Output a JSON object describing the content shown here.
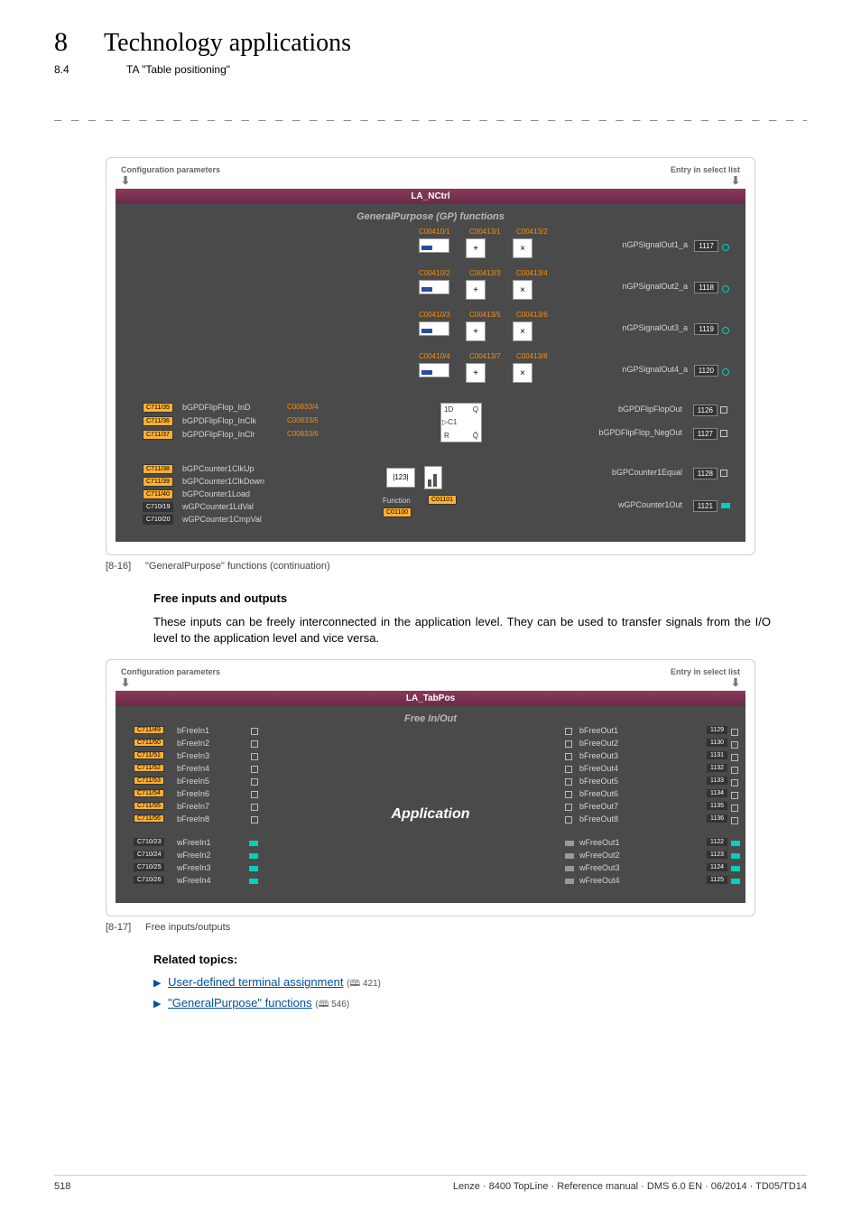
{
  "header": {
    "chapter_num": "8",
    "chapter_title": "Technology applications",
    "section_num": "8.4",
    "section_title": "TA \"Table positioning\""
  },
  "dash_line": "_ _ _ _ _ _ _ _ _ _ _ _ _ _ _ _ _ _ _ _ _ _ _ _ _ _ _ _ _ _ _ _ _ _ _ _ _ _ _ _ _ _ _ _ _ _ _ _ _ _ _ _ _ _ _ _ _ _ _ _ _ _ _ _",
  "diagram1": {
    "top_left": "Configuration parameters",
    "top_right": "Entry in select list",
    "block_title": "LA_NCtrl",
    "subtitle": "GeneralPurpose (GP) functions",
    "gp_rows": [
      {
        "c1": "C00410/1",
        "c2": "C00413/1",
        "c3": "C00413/2",
        "out": "nGPSignalOut1_a",
        "port": "1117"
      },
      {
        "c1": "C00410/2",
        "c2": "C00413/3",
        "c3": "C00413/4",
        "out": "nGPSignalOut2_a",
        "port": "1118"
      },
      {
        "c1": "C00410/3",
        "c2": "C00413/5",
        "c3": "C00413/6",
        "out": "nGPSignalOut3_a",
        "port": "1119"
      },
      {
        "c1": "C00410/4",
        "c2": "C00413/7",
        "c3": "C00413/8",
        "out": "nGPSignalOut4_a",
        "port": "1120"
      }
    ],
    "ff": {
      "ins": [
        {
          "port": "C711/35",
          "label": "bGPDFlipFlop_InD",
          "code": "C00833/4"
        },
        {
          "port": "C711/36",
          "label": "bGPDFlipFlop_InClk",
          "code": "C00833/5"
        },
        {
          "port": "C711/37",
          "label": "bGPDFlipFlop_InClr",
          "code": "C00833/6"
        }
      ],
      "box": {
        "tl": "1D",
        "tr": "Q",
        "ml": "C1",
        "bl": "R",
        "br": "Q̄"
      },
      "outs": [
        {
          "label": "bGPDFlipFlopOut",
          "port": "1126"
        },
        {
          "label": "bGPDFlipFlop_NegOut",
          "port": "1127"
        }
      ]
    },
    "counter": {
      "ins": [
        {
          "port": "C711/38",
          "label": "bGPCounter1ClkUp"
        },
        {
          "port": "C711/39",
          "label": "bGPCounter1ClkDown"
        },
        {
          "port": "C711/40",
          "label": "bGPCounter1Load"
        },
        {
          "port": "C710/19",
          "label": "wGPCounter1LdVal"
        },
        {
          "port": "C710/20",
          "label": "wGPCounter1CmpVal"
        }
      ],
      "func_label": "Function",
      "func_code1": "C01100",
      "func_code2": "C01101",
      "disp": "123",
      "outs": [
        {
          "label": "bGPCounter1Equal",
          "port": "1128",
          "square": true
        },
        {
          "label": "wGPCounter1Out",
          "port": "1121",
          "square": false
        }
      ]
    }
  },
  "fig1": {
    "num": "[8-16]",
    "caption": "\"GeneralPurpose\" functions (continuation)"
  },
  "bodytext": {
    "h1": "Free inputs and outputs",
    "p1": "These inputs can be freely interconnected in the application level. They can be used to transfer signals from the I/O level to the application level and vice versa."
  },
  "diagram2": {
    "top_left": "Configuration parameters",
    "top_right": "Entry in select list",
    "block_title": "LA_TabPos",
    "subtitle": "Free In/Out",
    "app_label": "Application",
    "b_in": [
      {
        "port": "C711/49",
        "label": "bFreeIn1"
      },
      {
        "port": "C711/50",
        "label": "bFreeIn2"
      },
      {
        "port": "C711/51",
        "label": "bFreeIn3"
      },
      {
        "port": "C711/52",
        "label": "bFreeIn4"
      },
      {
        "port": "C711/53",
        "label": "bFreeIn5"
      },
      {
        "port": "C711/54",
        "label": "bFreeIn6"
      },
      {
        "port": "C711/55",
        "label": "bFreeIn7"
      },
      {
        "port": "C711/56",
        "label": "bFreeIn8"
      }
    ],
    "w_in": [
      {
        "port": "C710/23",
        "label": "wFreeIn1"
      },
      {
        "port": "C710/24",
        "label": "wFreeIn2"
      },
      {
        "port": "C710/25",
        "label": "wFreeIn3"
      },
      {
        "port": "C710/26",
        "label": "wFreeIn4"
      }
    ],
    "b_out": [
      {
        "label": "bFreeOut1",
        "port": "1129"
      },
      {
        "label": "bFreeOut2",
        "port": "1130"
      },
      {
        "label": "bFreeOut3",
        "port": "1131"
      },
      {
        "label": "bFreeOut4",
        "port": "1132"
      },
      {
        "label": "bFreeOut5",
        "port": "1133"
      },
      {
        "label": "bFreeOut6",
        "port": "1134"
      },
      {
        "label": "bFreeOut7",
        "port": "1135"
      },
      {
        "label": "bFreeOut8",
        "port": "1136"
      }
    ],
    "w_out": [
      {
        "label": "wFreeOut1",
        "port": "1122"
      },
      {
        "label": "wFreeOut2",
        "port": "1123"
      },
      {
        "label": "wFreeOut3",
        "port": "1124"
      },
      {
        "label": "wFreeOut4",
        "port": "1125"
      }
    ]
  },
  "fig2": {
    "num": "[8-17]",
    "caption": "Free inputs/outputs"
  },
  "related": {
    "heading": "Related topics:",
    "items": [
      {
        "text": "User-defined terminal assignment",
        "page": "421"
      },
      {
        "text": "\"GeneralPurpose\" functions",
        "page": "546"
      }
    ]
  },
  "footer": {
    "page": "518",
    "right": "Lenze · 8400 TopLine · Reference manual · DMS 6.0 EN · 06/2014 · TD05/TD14"
  },
  "colors": {
    "accent_teal": "#00d0c0",
    "orange": "#ff8c00",
    "port_orange": "#ffb030",
    "link": "#0050a0",
    "dark_panel": "#4a4a4a",
    "header_bar": "#6a2a4a"
  }
}
